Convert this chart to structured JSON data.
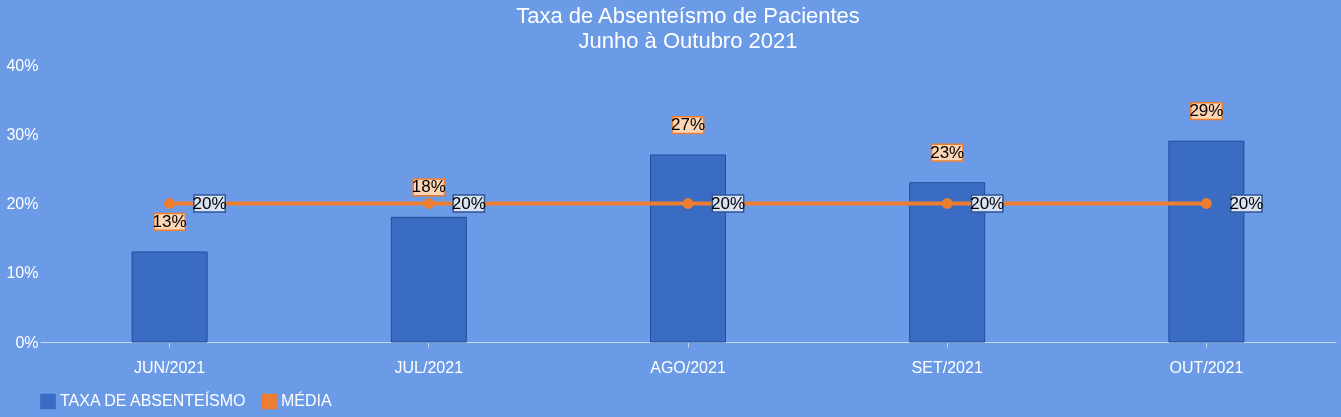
{
  "chart_data": {
    "type": "bar",
    "title": "Taxa de Absenteísmo de Pacientes",
    "subtitle": "Junho à Outubro 2021",
    "categories": [
      "JUN/2021",
      "JUL/2021",
      "AGO/2021",
      "SET/2021",
      "OUT/2021"
    ],
    "series": [
      {
        "name": "TAXA DE ABSENTEÍSMO",
        "color": "#3a6cc4",
        "values": [
          13,
          18,
          27,
          23,
          29
        ],
        "value_labels": [
          "13%",
          "18%",
          "27%",
          "23%",
          "29%"
        ]
      },
      {
        "name": "MÉDIA",
        "type": "line",
        "color": "#ed7d31",
        "values": [
          20,
          20,
          20,
          20,
          20
        ],
        "value_labels": [
          "20%",
          "20%",
          "20%",
          "20%",
          "20%"
        ],
        "marker": "circle",
        "line_style": "solid"
      }
    ],
    "ylim": [
      0,
      40
    ],
    "yticks": [
      {
        "value": 0,
        "label": "0%"
      },
      {
        "value": 10,
        "label": "10%"
      },
      {
        "value": 20,
        "label": "20%"
      },
      {
        "value": 30,
        "label": "30%"
      },
      {
        "value": 40,
        "label": "40%"
      }
    ],
    "grid": false,
    "legend": "bottom"
  }
}
